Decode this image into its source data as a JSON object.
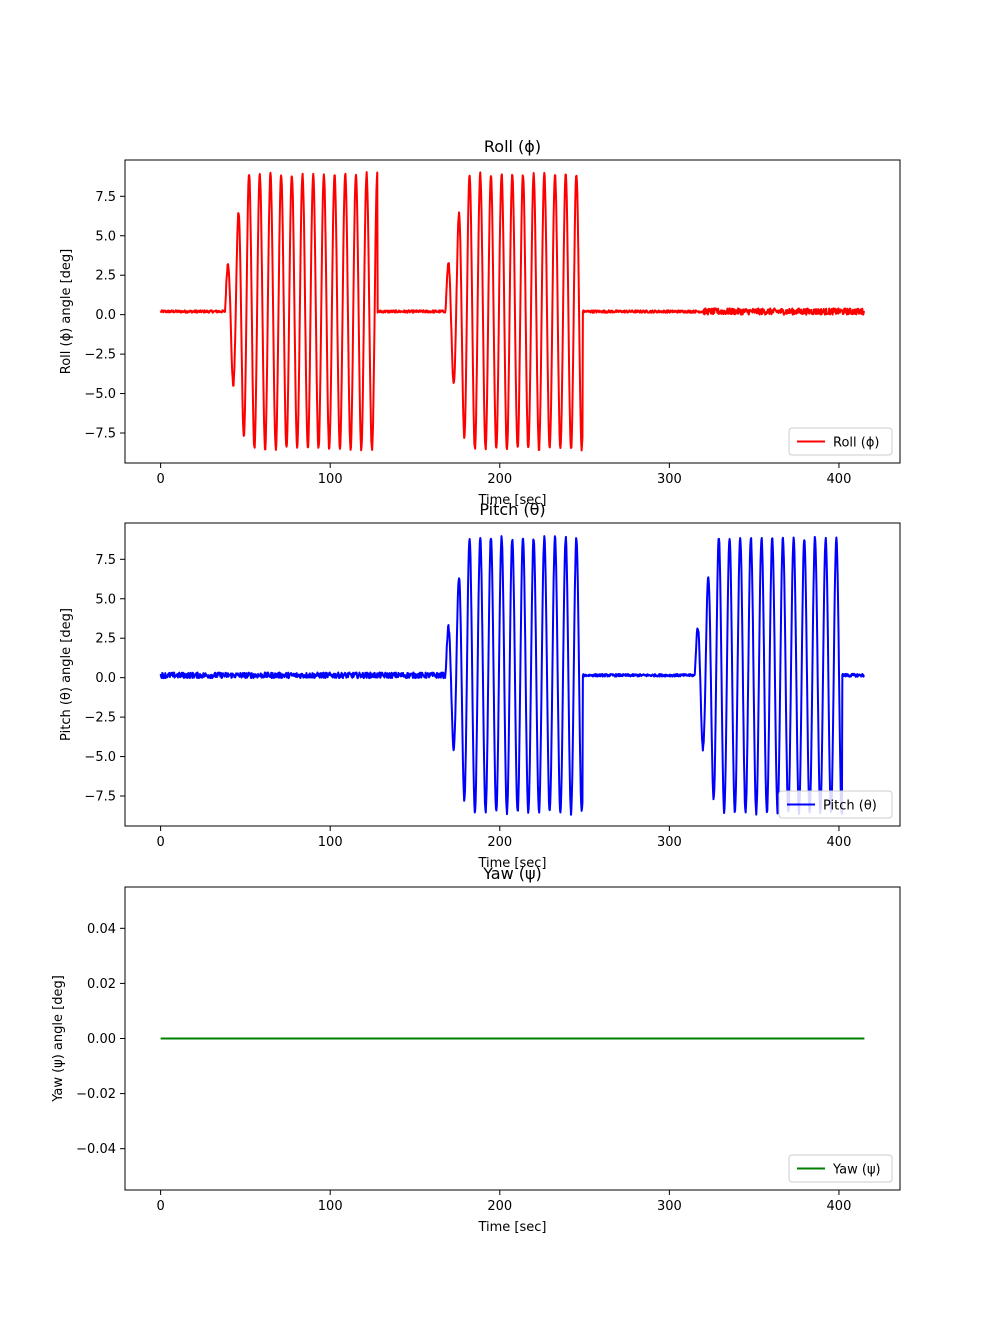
{
  "chart_data": [
    {
      "type": "line",
      "title": "Roll (ϕ)",
      "xlabel": "Time [sec]",
      "ylabel": "Roll (ϕ) angle [deg]",
      "xlim": [
        -21,
        436
      ],
      "ylim": [
        -9.4,
        9.8
      ],
      "xticks": [
        0,
        100,
        200,
        300,
        400
      ],
      "xtick_labels": [
        "0",
        "100",
        "200",
        "300",
        "400"
      ],
      "yticks": [
        7.5,
        5.0,
        2.5,
        0.0,
        -2.5,
        -5.0,
        -7.5
      ],
      "ytick_labels": [
        "7.5",
        "5.0",
        "2.5",
        "0.0",
        "−2.5",
        "−5.0",
        "−7.5"
      ],
      "legend": "lower-right",
      "grid": false,
      "series": [
        {
          "name": "Roll (ϕ)",
          "color": "#ff0000",
          "baseline": 0.2,
          "segments": [
            {
              "x_start": 0,
              "x_end": 38,
              "kind": "flat",
              "noise": 0.08
            },
            {
              "x_start": 38,
              "x_end": 128,
              "kind": "sine",
              "period": 6.3,
              "amplitude": 8.7,
              "ramp_cycles": 2
            },
            {
              "x_start": 128,
              "x_end": 168,
              "kind": "flat",
              "noise": 0.08
            },
            {
              "x_start": 168,
              "x_end": 249,
              "kind": "sine",
              "period": 6.3,
              "amplitude": 8.7,
              "ramp_cycles": 2
            },
            {
              "x_start": 249,
              "x_end": 320,
              "kind": "flat",
              "noise": 0.08
            },
            {
              "x_start": 320,
              "x_end": 415,
              "kind": "flat",
              "noise": 0.2
            }
          ]
        }
      ]
    },
    {
      "type": "line",
      "title": "Pitch (θ)",
      "xlabel": "Time [sec]",
      "ylabel": "Pitch (θ) angle [deg]",
      "xlim": [
        -21,
        436
      ],
      "ylim": [
        -9.4,
        9.8
      ],
      "xticks": [
        0,
        100,
        200,
        300,
        400
      ],
      "xtick_labels": [
        "0",
        "100",
        "200",
        "300",
        "400"
      ],
      "yticks": [
        7.5,
        5.0,
        2.5,
        0.0,
        -2.5,
        -5.0,
        -7.5
      ],
      "ytick_labels": [
        "7.5",
        "5.0",
        "2.5",
        "0.0",
        "−2.5",
        "−5.0",
        "−7.5"
      ],
      "legend": "lower-right",
      "grid": false,
      "series": [
        {
          "name": "Pitch (θ)",
          "color": "#0000ff",
          "baseline": 0.15,
          "segments": [
            {
              "x_start": 0,
              "x_end": 168,
              "kind": "flat",
              "noise": 0.18
            },
            {
              "x_start": 168,
              "x_end": 249,
              "kind": "sine",
              "period": 6.3,
              "amplitude": 8.7,
              "ramp_cycles": 2
            },
            {
              "x_start": 249,
              "x_end": 315,
              "kind": "flat",
              "noise": 0.08
            },
            {
              "x_start": 315,
              "x_end": 402,
              "kind": "sine",
              "period": 6.3,
              "amplitude": 8.7,
              "ramp_cycles": 2
            },
            {
              "x_start": 402,
              "x_end": 415,
              "kind": "flat",
              "noise": 0.1
            }
          ]
        }
      ]
    },
    {
      "type": "line",
      "title": "Yaw (ψ)",
      "xlabel": "Time [sec]",
      "ylabel": "Yaw (ψ) angle [deg]",
      "xlim": [
        -21,
        436
      ],
      "ylim": [
        -0.055,
        0.055
      ],
      "xticks": [
        0,
        100,
        200,
        300,
        400
      ],
      "xtick_labels": [
        "0",
        "100",
        "200",
        "300",
        "400"
      ],
      "yticks": [
        0.04,
        0.02,
        0.0,
        -0.02,
        -0.04
      ],
      "ytick_labels": [
        "0.04",
        "0.02",
        "0.00",
        "−0.02",
        "−0.04"
      ],
      "legend": "lower-right",
      "grid": false,
      "series": [
        {
          "name": "Yaw (ψ)",
          "color": "#008000",
          "x": [
            0,
            415
          ],
          "values": [
            0,
            0
          ]
        }
      ]
    }
  ]
}
